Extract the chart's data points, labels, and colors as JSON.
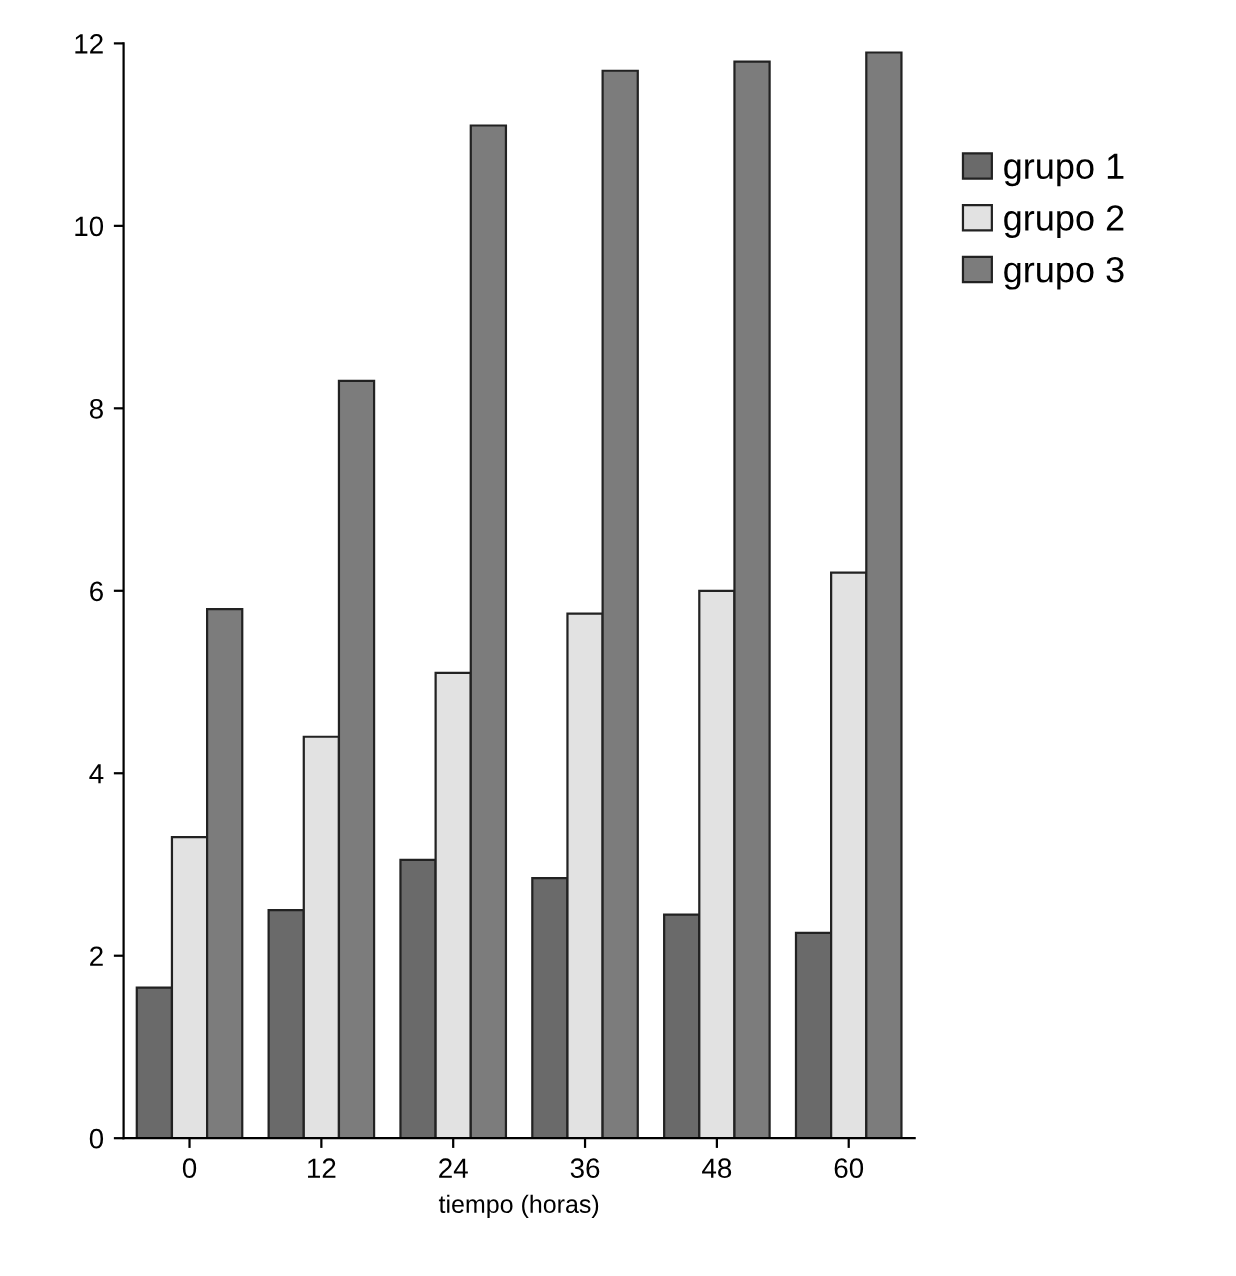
{
  "chart_data": {
    "type": "bar",
    "xlabel": "tiempo (horas)",
    "categories": [
      "0",
      "12",
      "24",
      "36",
      "48",
      "60"
    ],
    "series": [
      {
        "name": "grupo 1",
        "color": "#6a6a6a",
        "values": [
          1.65,
          2.5,
          3.05,
          2.85,
          2.45,
          2.25
        ]
      },
      {
        "name": "grupo 2",
        "color": "#e2e2e2",
        "values": [
          3.3,
          4.4,
          5.1,
          5.75,
          6.0,
          6.2
        ]
      },
      {
        "name": "grupo 3",
        "color": "#7c7c7c",
        "values": [
          5.8,
          8.3,
          11.1,
          11.7,
          11.8,
          11.9
        ]
      }
    ],
    "ylim": [
      0,
      12
    ],
    "yticks": [
      0,
      2,
      4,
      6,
      8,
      10,
      12
    ],
    "grid": false,
    "legend": "top right"
  }
}
